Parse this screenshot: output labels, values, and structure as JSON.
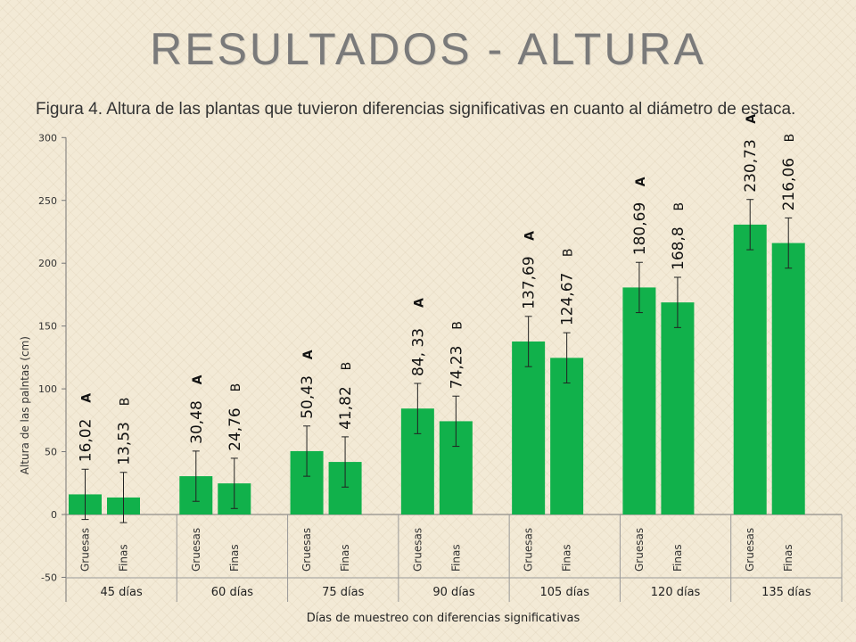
{
  "slide": {
    "title": "RESULTADOS  - ALTURA",
    "caption": "Figura 4. Altura de las plantas que tuvieron diferencias significativas en cuanto al diámetro de estaca."
  },
  "chart_data": {
    "type": "bar",
    "xlabel": "Días de muestreo con diferencias significativas",
    "ylabel": "Altura de las palntas (cm)",
    "ylim": [
      -50,
      300
    ],
    "yticks": [
      -50,
      0,
      50,
      100,
      150,
      200,
      250,
      300
    ],
    "bar_color": "#11b14b",
    "groups": [
      {
        "label": "45 días",
        "bars": [
          {
            "category": "Gruesas",
            "value": 16.02,
            "value_label": "16,02",
            "letter": "A",
            "error": 20
          },
          {
            "category": "Finas",
            "value": 13.53,
            "value_label": "13,53",
            "letter": "B",
            "error": 20
          }
        ]
      },
      {
        "label": "60 días",
        "bars": [
          {
            "category": "Gruesas",
            "value": 30.48,
            "value_label": "30,48",
            "letter": "A",
            "error": 20
          },
          {
            "category": "Finas",
            "value": 24.76,
            "value_label": "24,76",
            "letter": "B",
            "error": 20
          }
        ]
      },
      {
        "label": "75 días",
        "bars": [
          {
            "category": "Gruesas",
            "value": 50.43,
            "value_label": "50,43",
            "letter": "A",
            "error": 20
          },
          {
            "category": "Finas",
            "value": 41.82,
            "value_label": "41,82",
            "letter": "B",
            "error": 20
          }
        ]
      },
      {
        "label": "90 días",
        "bars": [
          {
            "category": "Gruesas",
            "value": 84.33,
            "value_label": "84, 33",
            "letter": "A",
            "error": 20
          },
          {
            "category": "Finas",
            "value": 74.23,
            "value_label": "74,23",
            "letter": "B",
            "error": 20
          }
        ]
      },
      {
        "label": "105 días",
        "bars": [
          {
            "category": "Gruesas",
            "value": 137.69,
            "value_label": "137,69",
            "letter": "A",
            "error": 20
          },
          {
            "category": "Finas",
            "value": 124.67,
            "value_label": "124,67",
            "letter": "B",
            "error": 20
          }
        ]
      },
      {
        "label": "120 días",
        "bars": [
          {
            "category": "Gruesas",
            "value": 180.69,
            "value_label": "180,69",
            "letter": "A",
            "error": 20
          },
          {
            "category": "Finas",
            "value": 168.8,
            "value_label": "168,8",
            "letter": "B",
            "error": 20
          }
        ]
      },
      {
        "label": "135 días",
        "bars": [
          {
            "category": "Gruesas",
            "value": 230.73,
            "value_label": "230,73",
            "letter": "A",
            "error": 20
          },
          {
            "category": "Finas",
            "value": 216.06,
            "value_label": "216,06",
            "letter": "B",
            "error": 20
          }
        ]
      }
    ]
  }
}
